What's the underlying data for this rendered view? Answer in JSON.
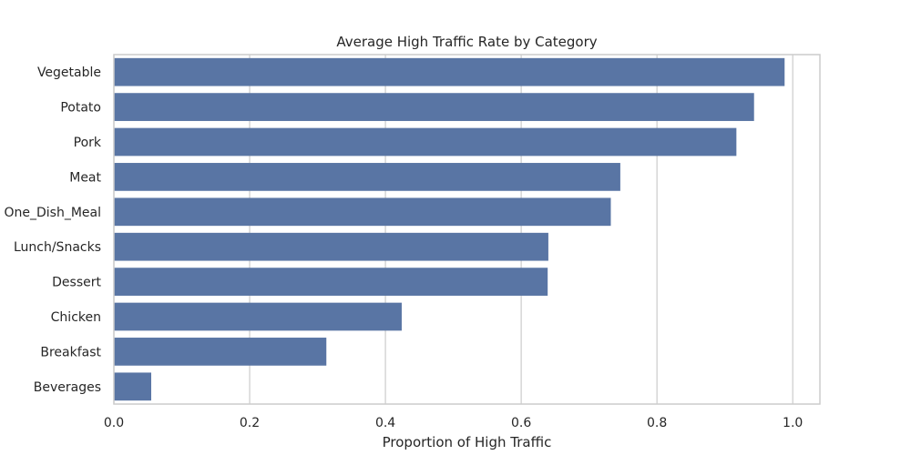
{
  "chart_data": {
    "type": "bar",
    "orientation": "horizontal",
    "title": "Average High Traffic Rate by Category",
    "xlabel": "Proportion of High Traffic",
    "ylabel": "",
    "categories": [
      "Vegetable",
      "Potato",
      "Pork",
      "Meat",
      "One_Dish_Meal",
      "Lunch/Snacks",
      "Dessert",
      "Chicken",
      "Breakfast",
      "Beverages"
    ],
    "values": [
      0.988,
      0.943,
      0.917,
      0.746,
      0.732,
      0.64,
      0.639,
      0.424,
      0.313,
      0.055
    ],
    "xlim": [
      0.0,
      1.04
    ],
    "xticks": [
      0.0,
      0.2,
      0.4,
      0.6,
      0.8,
      1.0
    ],
    "xtick_labels": [
      "0.0",
      "0.2",
      "0.4",
      "0.6",
      "0.8",
      "1.0"
    ],
    "grid": true,
    "bar_color": "#5975a4"
  }
}
